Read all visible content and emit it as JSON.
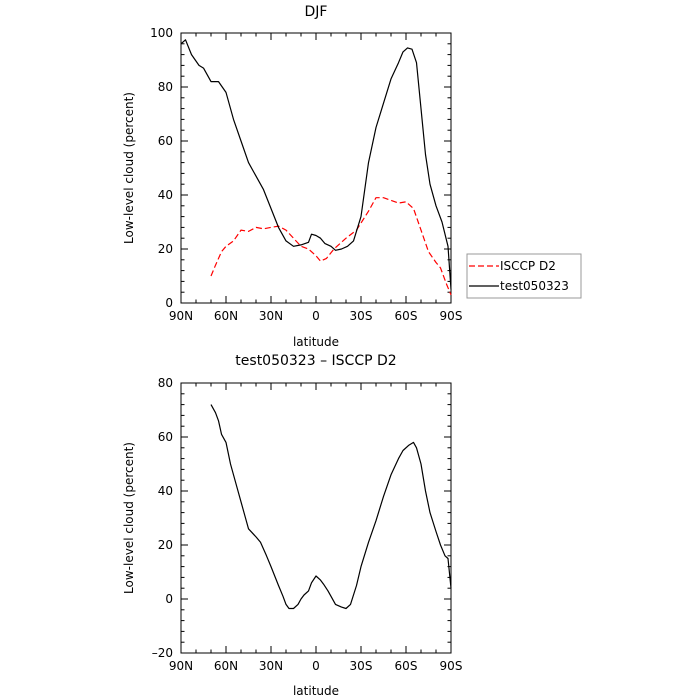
{
  "chart_data": [
    {
      "type": "line",
      "title": "DJF",
      "xlabel": "latitude",
      "ylabel": "Low-level cloud (percent)",
      "xlim": [
        90,
        -90
      ],
      "ylim": [
        0,
        100
      ],
      "xticks": [
        90,
        60,
        30,
        0,
        -30,
        -60,
        -90
      ],
      "xtick_labels": [
        "90N",
        "60N",
        "30N",
        "0",
        "30S",
        "60S",
        "90S"
      ],
      "yticks": [
        0,
        20,
        40,
        60,
        80,
        100
      ],
      "ytick_labels": [
        "0",
        "20",
        "40",
        "60",
        "80",
        "100"
      ],
      "grid": false,
      "legend": {
        "placement": "outside-right"
      },
      "series": [
        {
          "name": "ISCCP D2",
          "color": "#ff0000",
          "style": "dashed",
          "points": [
            [
              70,
              10
            ],
            [
              67,
              14
            ],
            [
              63,
              19
            ],
            [
              60,
              21
            ],
            [
              55,
              23
            ],
            [
              50,
              27
            ],
            [
              45,
              26.5
            ],
            [
              40,
              28
            ],
            [
              35,
              27.5
            ],
            [
              30,
              28
            ],
            [
              25,
              28.5
            ],
            [
              20,
              27
            ],
            [
              15,
              24
            ],
            [
              10,
              21
            ],
            [
              5,
              20
            ],
            [
              0,
              17.5
            ],
            [
              -3,
              15.5
            ],
            [
              -7,
              16.5
            ],
            [
              -12,
              20
            ],
            [
              -20,
              24
            ],
            [
              -27,
              27
            ],
            [
              -35,
              34
            ],
            [
              -40,
              39
            ],
            [
              -45,
              39
            ],
            [
              -50,
              38
            ],
            [
              -55,
              37
            ],
            [
              -60,
              37.5
            ],
            [
              -65,
              35
            ],
            [
              -70,
              27
            ],
            [
              -75,
              19
            ],
            [
              -80,
              15
            ],
            [
              -83,
              13
            ],
            [
              -87,
              7
            ],
            [
              -90,
              3
            ]
          ]
        },
        {
          "name": "test050323",
          "color": "#000000",
          "style": "solid",
          "points": [
            [
              90,
              96
            ],
            [
              87,
              97.5
            ],
            [
              83,
              92
            ],
            [
              78,
              88
            ],
            [
              75,
              87
            ],
            [
              70,
              82
            ],
            [
              65,
              82
            ],
            [
              60,
              78
            ],
            [
              55,
              68
            ],
            [
              50,
              60
            ],
            [
              45,
              52
            ],
            [
              40,
              47
            ],
            [
              35,
              42
            ],
            [
              30,
              35
            ],
            [
              25,
              28
            ],
            [
              20,
              23
            ],
            [
              15,
              21
            ],
            [
              10,
              21.5
            ],
            [
              5,
              22.5
            ],
            [
              3,
              25.5
            ],
            [
              0,
              25
            ],
            [
              -3,
              24
            ],
            [
              -6,
              22
            ],
            [
              -10,
              21
            ],
            [
              -13,
              19.5
            ],
            [
              -17,
              20
            ],
            [
              -21,
              21
            ],
            [
              -25,
              23
            ],
            [
              -30,
              32
            ],
            [
              -35,
              52
            ],
            [
              -40,
              65
            ],
            [
              -45,
              74
            ],
            [
              -50,
              83
            ],
            [
              -55,
              89
            ],
            [
              -58,
              93
            ],
            [
              -61,
              94.5
            ],
            [
              -64,
              94
            ],
            [
              -67,
              89
            ],
            [
              -70,
              72
            ],
            [
              -73,
              55
            ],
            [
              -76,
              44
            ],
            [
              -80,
              36
            ],
            [
              -84,
              30
            ],
            [
              -88,
              21
            ],
            [
              -90,
              5
            ]
          ]
        }
      ]
    },
    {
      "type": "line",
      "title": "test050323 – ISCCP D2",
      "xlabel": "latitude",
      "ylabel": "Low-level cloud (percent)",
      "xlim": [
        90,
        -90
      ],
      "ylim": [
        -20,
        80
      ],
      "xticks": [
        90,
        60,
        30,
        0,
        -30,
        -60,
        -90
      ],
      "xtick_labels": [
        "90N",
        "60N",
        "30N",
        "0",
        "30S",
        "60S",
        "90S"
      ],
      "yticks": [
        -20,
        0,
        20,
        40,
        60,
        80
      ],
      "ytick_labels": [
        "–20",
        "0",
        "20",
        "40",
        "60",
        "80"
      ],
      "grid": false,
      "series": [
        {
          "color": "#000000",
          "style": "solid",
          "points": [
            [
              70,
              72
            ],
            [
              67,
              69
            ],
            [
              65,
              66
            ],
            [
              63,
              61
            ],
            [
              60,
              58
            ],
            [
              57,
              50
            ],
            [
              53,
              42
            ],
            [
              50,
              36
            ],
            [
              47,
              30
            ],
            [
              45,
              26
            ],
            [
              40,
              23
            ],
            [
              37,
              21
            ],
            [
              33,
              16
            ],
            [
              30,
              12
            ],
            [
              25,
              5
            ],
            [
              22,
              1
            ],
            [
              20,
              -2
            ],
            [
              18,
              -3.5
            ],
            [
              15,
              -3.5
            ],
            [
              12,
              -2
            ],
            [
              10,
              0
            ],
            [
              8,
              1.5
            ],
            [
              5,
              3
            ],
            [
              3,
              6
            ],
            [
              0,
              8.5
            ],
            [
              -3,
              7
            ],
            [
              -5,
              5.5
            ],
            [
              -8,
              3
            ],
            [
              -10,
              1
            ],
            [
              -13,
              -2
            ],
            [
              -17,
              -3
            ],
            [
              -20,
              -3.5
            ],
            [
              -23,
              -2
            ],
            [
              -27,
              5
            ],
            [
              -30,
              12
            ],
            [
              -35,
              21
            ],
            [
              -40,
              29
            ],
            [
              -45,
              38
            ],
            [
              -50,
              46
            ],
            [
              -55,
              52
            ],
            [
              -58,
              55
            ],
            [
              -62,
              57
            ],
            [
              -65,
              58
            ],
            [
              -67,
              56
            ],
            [
              -70,
              50
            ],
            [
              -73,
              40
            ],
            [
              -76,
              32
            ],
            [
              -80,
              25
            ],
            [
              -83,
              20
            ],
            [
              -86,
              16
            ],
            [
              -88,
              15
            ],
            [
              -90,
              4
            ]
          ]
        }
      ]
    }
  ]
}
